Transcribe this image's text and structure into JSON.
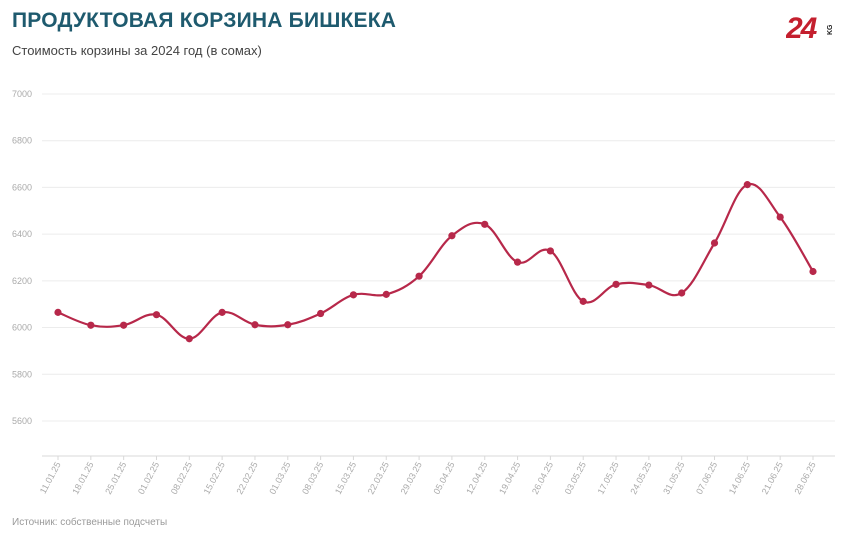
{
  "header": {
    "title": "ПРОДУКТОВАЯ КОРЗИНА БИШКЕКА",
    "subtitle": "Стоимость корзины за 2024 год (в сомах)"
  },
  "logo": {
    "text": "24",
    "suffix": "KG",
    "icon": "24kg-logo"
  },
  "footer": {
    "source": "Источник: собственные подсчеты"
  },
  "colors": {
    "line": "#b7284a",
    "title": "#1e5a6e",
    "grid": "#ececec"
  },
  "chart_data": {
    "type": "line",
    "title": "ПРОДУКТОВАЯ КОРЗИНА БИШКЕКА",
    "subtitle": "Стоимость корзины за 2024 год (в сомах)",
    "xlabel": "",
    "ylabel": "",
    "ylim": [
      5450,
      7000
    ],
    "yticks": [
      5600,
      5800,
      6000,
      6200,
      6400,
      6600,
      6800,
      7000
    ],
    "grid": true,
    "legend": "none",
    "categories": [
      "11.01.25",
      "18.01.25",
      "25.01.25",
      "01.02.25",
      "08.02.25",
      "15.02.25",
      "22.02.25",
      "01.03.25",
      "08.03.25",
      "15.03.25",
      "22.03.25",
      "29.03.25",
      "05.04.25",
      "12.04.25",
      "19.04.25",
      "26.04.25",
      "03.05.25",
      "17.05.25",
      "24.05.25",
      "31.05.25",
      "07.06.25",
      "14.06.25",
      "21.06.25",
      "28.06.25"
    ],
    "series": [
      {
        "values": [
          6065,
          6010,
          6010,
          6055,
          5952,
          6065,
          6012,
          6012,
          6060,
          6140,
          6142,
          6220,
          6393,
          6442,
          6280,
          6328,
          6112,
          6185,
          6182,
          6148,
          6362,
          6612,
          6473,
          6240
        ]
      }
    ]
  }
}
